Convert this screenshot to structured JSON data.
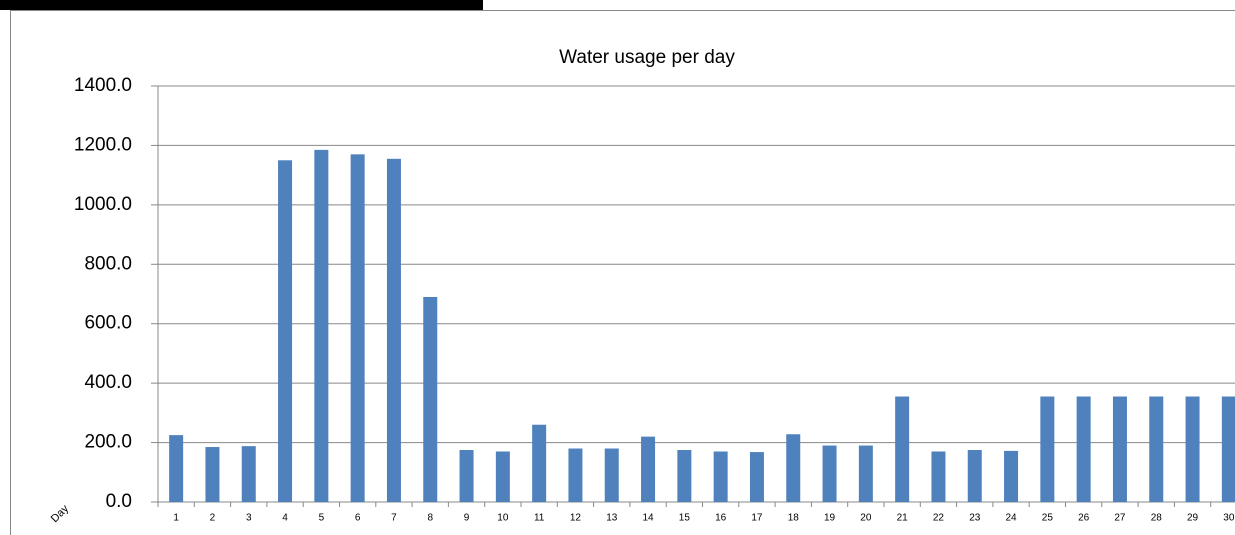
{
  "chart_data": {
    "type": "bar",
    "title": "Water usage per day",
    "x_label": "Day",
    "categories": [
      "1",
      "2",
      "3",
      "4",
      "5",
      "6",
      "7",
      "8",
      "9",
      "10",
      "11",
      "12",
      "13",
      "14",
      "15",
      "16",
      "17",
      "18",
      "19",
      "20",
      "21",
      "22",
      "23",
      "24",
      "25",
      "26",
      "27",
      "28",
      "29",
      "30"
    ],
    "values": [
      225,
      185,
      188,
      1150,
      1185,
      1170,
      1155,
      690,
      175,
      170,
      260,
      180,
      180,
      220,
      175,
      170,
      168,
      228,
      190,
      190,
      355,
      170,
      175,
      172,
      355,
      355,
      355,
      355,
      355,
      355
    ],
    "color": "#4f81bd",
    "ylim": [
      0,
      1400
    ],
    "yticks": [
      {
        "value": 0,
        "label": "0.0"
      },
      {
        "value": 200,
        "label": "200.0"
      },
      {
        "value": 400,
        "label": "400.0"
      },
      {
        "value": 600,
        "label": "600.0"
      },
      {
        "value": 800,
        "label": "800.0"
      },
      {
        "value": 1000,
        "label": "1000.0"
      },
      {
        "value": 1200,
        "label": "1200.0"
      },
      {
        "value": 1400,
        "label": "1400.0"
      }
    ],
    "grid": true
  }
}
